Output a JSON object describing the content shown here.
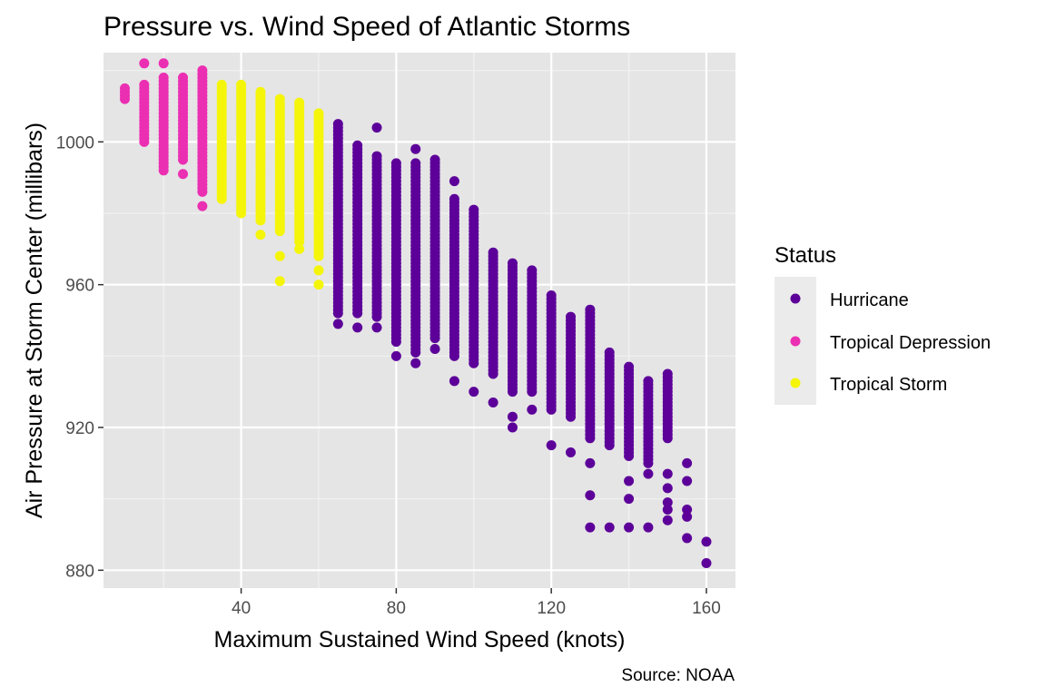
{
  "chart_data": {
    "type": "scatter",
    "title": "Pressure vs. Wind Speed of Atlantic Storms",
    "xlabel": "Maximum Sustained Wind Speed (knots)",
    "ylabel": "Air Pressure at Storm Center (millibars)",
    "caption": "Source: NOAA",
    "xlim": [
      4.5,
      167.5
    ],
    "ylim": [
      875,
      1025
    ],
    "x_ticks": [
      40,
      80,
      120,
      160
    ],
    "y_ticks": [
      880,
      920,
      960,
      1000
    ],
    "grid": true,
    "legend": {
      "title": "Status",
      "position": "right",
      "entries": [
        {
          "label": "Hurricane",
          "color": "#5c0099"
        },
        {
          "label": "Tropical Depression",
          "color": "#eb2fb2"
        },
        {
          "label": "Tropical Storm",
          "color": "#f5f50a"
        }
      ]
    },
    "series": [
      {
        "name": "Tropical Depression",
        "color": "#eb2fb2",
        "ranges": [
          {
            "x": 10,
            "ymin": 1012,
            "ymax": 1015
          },
          {
            "x": 15,
            "ymin": 1000,
            "ymax": 1016
          },
          {
            "x": 20,
            "ymin": 992,
            "ymax": 1018
          },
          {
            "x": 25,
            "ymin": 995,
            "ymax": 1018
          },
          {
            "x": 30,
            "ymin": 986,
            "ymax": 1020
          }
        ],
        "outliers": [
          [
            15,
            1022
          ],
          [
            20,
            1022
          ],
          [
            25,
            991
          ],
          [
            30,
            982
          ]
        ]
      },
      {
        "name": "Tropical Storm",
        "color": "#f5f50a",
        "ranges": [
          {
            "x": 35,
            "ymin": 984,
            "ymax": 1016
          },
          {
            "x": 40,
            "ymin": 980,
            "ymax": 1016
          },
          {
            "x": 45,
            "ymin": 978,
            "ymax": 1014
          },
          {
            "x": 50,
            "ymin": 975,
            "ymax": 1012
          },
          {
            "x": 55,
            "ymin": 972,
            "ymax": 1011
          },
          {
            "x": 60,
            "ymin": 968,
            "ymax": 1008
          }
        ],
        "outliers": [
          [
            45,
            974
          ],
          [
            50,
            968
          ],
          [
            50,
            961
          ],
          [
            55,
            970
          ],
          [
            60,
            964
          ],
          [
            60,
            960
          ]
        ]
      },
      {
        "name": "Hurricane",
        "color": "#5c0099",
        "ranges": [
          {
            "x": 65,
            "ymin": 952,
            "ymax": 1005
          },
          {
            "x": 70,
            "ymin": 952,
            "ymax": 999
          },
          {
            "x": 75,
            "ymin": 951,
            "ymax": 996
          },
          {
            "x": 80,
            "ymin": 944,
            "ymax": 994
          },
          {
            "x": 85,
            "ymin": 941,
            "ymax": 994
          },
          {
            "x": 90,
            "ymin": 945,
            "ymax": 995
          },
          {
            "x": 95,
            "ymin": 940,
            "ymax": 984
          },
          {
            "x": 100,
            "ymin": 938,
            "ymax": 981
          },
          {
            "x": 105,
            "ymin": 935,
            "ymax": 969
          },
          {
            "x": 110,
            "ymin": 930,
            "ymax": 966
          },
          {
            "x": 115,
            "ymin": 930,
            "ymax": 964
          },
          {
            "x": 120,
            "ymin": 925,
            "ymax": 957
          },
          {
            "x": 125,
            "ymin": 923,
            "ymax": 951
          },
          {
            "x": 130,
            "ymin": 917,
            "ymax": 953
          },
          {
            "x": 135,
            "ymin": 915,
            "ymax": 941
          },
          {
            "x": 140,
            "ymin": 912,
            "ymax": 937
          },
          {
            "x": 145,
            "ymin": 910,
            "ymax": 933
          },
          {
            "x": 150,
            "ymin": 917,
            "ymax": 935
          }
        ],
        "outliers": [
          [
            65,
            949
          ],
          [
            70,
            948
          ],
          [
            75,
            1004
          ],
          [
            75,
            948
          ],
          [
            80,
            940
          ],
          [
            85,
            998
          ],
          [
            85,
            938
          ],
          [
            90,
            942
          ],
          [
            95,
            989
          ],
          [
            95,
            933
          ],
          [
            100,
            930
          ],
          [
            105,
            927
          ],
          [
            110,
            923
          ],
          [
            110,
            920
          ],
          [
            115,
            925
          ],
          [
            120,
            915
          ],
          [
            125,
            913
          ],
          [
            130,
            910
          ],
          [
            130,
            901
          ],
          [
            130,
            892
          ],
          [
            135,
            892
          ],
          [
            140,
            892
          ],
          [
            140,
            900
          ],
          [
            140,
            905
          ],
          [
            145,
            892
          ],
          [
            145,
            907
          ],
          [
            150,
            907
          ],
          [
            150,
            903
          ],
          [
            150,
            897
          ],
          [
            150,
            894
          ],
          [
            150,
            899
          ],
          [
            155,
            905
          ],
          [
            155,
            897
          ],
          [
            155,
            895
          ],
          [
            155,
            889
          ],
          [
            155,
            910
          ],
          [
            160,
            888
          ],
          [
            160,
            882
          ]
        ]
      }
    ]
  }
}
